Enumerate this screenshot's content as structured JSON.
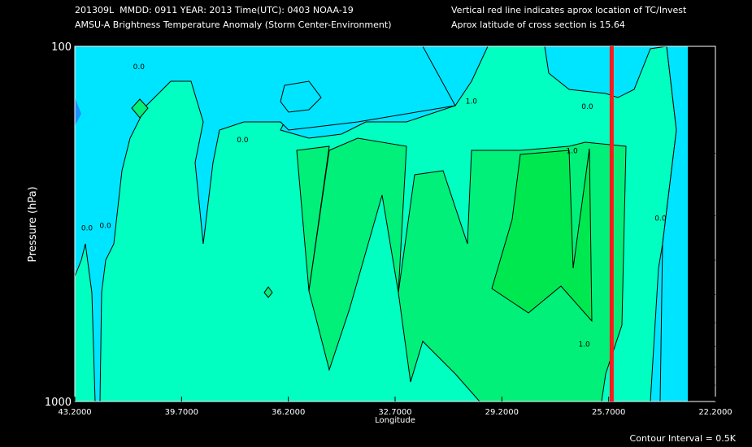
{
  "header": {
    "line1_left": "201309L  MMDD: 0911 YEAR: 2013 Time(UTC): 0403 NOAA-19",
    "line2_left": "AMSU-A Brightness Temperature Anomaly (Storm Center-Environment)",
    "line1_right": "Vertical red line indicates aprox location of TC/Invest",
    "line2_right": "Aprox latitude of cross section is 15.64"
  },
  "footer": {
    "contour_interval": "Contour Interval = 0.5K"
  },
  "chart_data": {
    "type": "contour",
    "xlabel": "Longitude",
    "ylabel": "Pressure (hPa)",
    "x_ticks": [
      "43.2000",
      "39.7000",
      "36.2000",
      "32.7000",
      "29.2000",
      "25.7000",
      "22.2000"
    ],
    "x_tick_values": [
      43.2,
      39.7,
      36.2,
      32.7,
      29.2,
      25.7,
      22.2
    ],
    "xlim": [
      43.2,
      22.2
    ],
    "x_reversed": true,
    "y_ticks": [
      "100",
      "1000"
    ],
    "y_tick_values": [
      100,
      1000
    ],
    "ylim": [
      1000,
      100
    ],
    "y_scale": "log",
    "tc_longitude": 25.6,
    "tc_line_color": "#ff1a1a",
    "contour_levels": [
      -0.5,
      0.0,
      0.5,
      1.0,
      1.5
    ],
    "contour_labels": [
      {
        "text": "0.0",
        "lon": 41.1,
        "p": 116
      },
      {
        "text": "0.0",
        "lon": 37.7,
        "p": 186
      },
      {
        "text": "0.0",
        "lon": 42.8,
        "p": 330
      },
      {
        "text": "0.0",
        "lon": 42.2,
        "p": 325
      },
      {
        "text": "1.0",
        "lon": 30.2,
        "p": 145
      },
      {
        "text": "0.0",
        "lon": 26.4,
        "p": 150
      },
      {
        "text": "1.0",
        "lon": 26.9,
        "p": 200
      },
      {
        "text": "0.0",
        "lon": 24.0,
        "p": 310
      },
      {
        "text": "1.0",
        "lon": 26.5,
        "p": 700
      }
    ],
    "fill_colors": {
      "lt_-0.5": "#1E90FF",
      "-0.5_0.0": "#00E5FF",
      "0.0_0.5": "#00FFC0",
      "0.5_1.0": "#00F07A",
      "1.0_1.5": "#00E850"
    }
  }
}
